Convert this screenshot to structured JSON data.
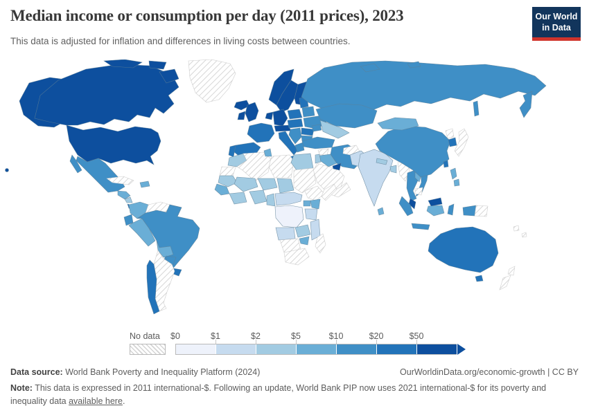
{
  "header": {
    "title": "Median income or consumption per day (2011 prices), 2023",
    "subtitle": "This data is adjusted for inflation and differences in living costs between countries.",
    "logo_line1": "Our World",
    "logo_line2": "in Data",
    "logo_bg": "#12355c",
    "logo_accent": "#d0342c"
  },
  "legend": {
    "no_data_label": "No data",
    "bins": [
      {
        "label": "$0",
        "color": "#eef2fb"
      },
      {
        "label": "$1",
        "color": "#c6dbef"
      },
      {
        "label": "$2",
        "color": "#a2cbe2"
      },
      {
        "label": "$5",
        "color": "#6aaed6"
      },
      {
        "label": "$10",
        "color": "#3f8fc6"
      },
      {
        "label": "$20",
        "color": "#2273b9"
      },
      {
        "label": "$50",
        "color": "#0d4f9e"
      }
    ]
  },
  "footer": {
    "data_source_label": "Data source:",
    "data_source": " World Bank Poverty and Inequality Platform (2024)",
    "url": "OurWorldinData.org/economic-growth",
    "separator": " | ",
    "license": "CC BY",
    "note_label": "Note:",
    "note_text": " This data is expressed in 2011 international-$. Following an update, World Bank PIP now uses 2021 international-$ for its poverty and inequality data ",
    "note_link": "available here",
    "note_period": "."
  },
  "chart_data": {
    "type": "choropleth_map",
    "title": "Median income or consumption per day (2011 prices), 2023",
    "year": 2023,
    "unit": "international-$ per day (2011 prices)",
    "bin_edges": [
      0,
      1,
      2,
      5,
      10,
      20,
      50
    ],
    "bin_labels": {
      "b0": "$0-$1",
      "b1": "$1-$2",
      "b2": "$2-$5",
      "b3": "$5-$10",
      "b4": "$10-$20",
      "b5": "$20-$50",
      "b6": "$50+",
      "none": "No data"
    },
    "bin_colors": {
      "b0": "#eef2fb",
      "b1": "#c6dbef",
      "b2": "#a2cbe2",
      "b3": "#6aaed6",
      "b4": "#3f8fc6",
      "b5": "#2273b9",
      "b6": "#0d4f9e"
    },
    "regions": {
      "hawaii": "b6",
      "alaska": "b6",
      "canada": "b6",
      "arctic-1": "b6",
      "arctic-2": "b6",
      "baffin": "b6",
      "usa": "b6",
      "mexico": "b4",
      "baja": "b4",
      "guatemala-honduras": "b3",
      "nicaragua": "b2",
      "costa-panama": "b5",
      "cuba": "none",
      "hispaniola": "b3",
      "colombia": "b3",
      "venezuela": "none",
      "guyanas": "b3",
      "ecuador": "b4",
      "peru": "b3",
      "brazil": "b4",
      "bolivia": "b3",
      "paraguay": "b4",
      "uruguay": "b5",
      "argentina": "none",
      "chile": "b5",
      "greenland": "none",
      "iceland": "b6",
      "norway": "b6",
      "sweden": "b6",
      "finland": "b6",
      "denmark": "b6",
      "uk": "b6",
      "ireland": "b6",
      "france": "b5",
      "spain": "b5",
      "portugal": "b5",
      "germany": "b6",
      "benelux": "b6",
      "switzerland-austria": "b6",
      "italy": "b5",
      "sicily": "b5",
      "poland": "b5",
      "czech-hungary": "b5",
      "baltics": "b5",
      "belarus": "b4",
      "ukraine": "b4",
      "romania": "b5",
      "balkans": "b4",
      "bulgaria": "b4",
      "greece": "b4",
      "russia": "b4",
      "kamchatka": "b4",
      "sakhalin": "b4",
      "novaya-zemlya": "b4",
      "arctic-ru": "b4",
      "kazakhstan": "b4",
      "central-asia": "b2",
      "caucasus": "b4",
      "turkey": "b4",
      "syria": "none",
      "iraq": "b3",
      "iran": "b4",
      "saudi-arabia": "none",
      "uae": "b6",
      "yemen-oman": "none",
      "jordan-israel": "b2",
      "afghanistan": "none",
      "pakistan": "b1",
      "india": "b1",
      "nepal": "b2",
      "bangladesh": "b2",
      "sri-lanka": "b3",
      "myanmar": "none",
      "thailand": "b4",
      "laos": "b3",
      "vietnam": "b4",
      "cambodia": "none",
      "china": "b4",
      "mongolia": "b3",
      "north-korea": "none",
      "south-korea": "b5",
      "japan": "none",
      "taiwan": "b5",
      "philippines-north": "b3",
      "philippines-south": "b3",
      "malaysia-peninsula": "b6",
      "malaysia-borneo": "b6",
      "sumatra": "b4",
      "java": "b4",
      "kalimantan": "b3",
      "sulawesi": "b4",
      "west-papua": "b4",
      "papua-new-guinea": "none",
      "pacific-1": "none",
      "pacific-2": "none",
      "morocco": "b2",
      "western-sahara": "none",
      "algeria": "none",
      "tunisia": "b3",
      "libya": "none",
      "egypt": "b2",
      "mauritania": "b2",
      "mali": "b2",
      "niger": "b2",
      "chad": "b2",
      "sudan": "none",
      "senegal": "b3",
      "guinea-coast": "b2",
      "nigeria": "b2",
      "cameroon-gabon": "b2",
      "central-african-republic": "b1",
      "ethiopia": "none",
      "somalia": "none",
      "kenya": "b3",
      "uganda": "b3",
      "drc": "b0",
      "tanzania": "b1",
      "angola": "b1",
      "zambia": "b2",
      "mozambique": "b1",
      "zimbabwe": "b3",
      "namibia-botswana": "none",
      "south-africa": "none",
      "madagascar": "none",
      "australia": "b5",
      "tasmania": "b5",
      "new-zealand-north": "none",
      "new-zealand-south": "none"
    }
  }
}
